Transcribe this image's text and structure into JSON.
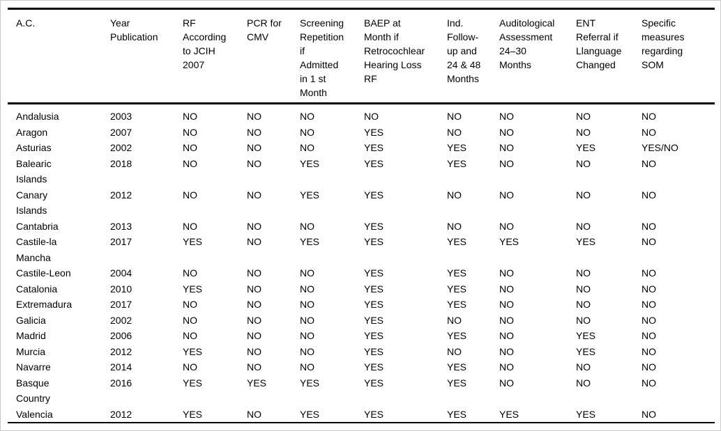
{
  "table": {
    "columns": [
      {
        "label": "A.C."
      },
      {
        "label": "Year\nPublication"
      },
      {
        "label": "RF\nAccording\nto JCIH\n2007"
      },
      {
        "label": "PCR for\nCMV"
      },
      {
        "label": "Screening\nRepetition\nif\nAdmitted\nin 1 st\nMonth"
      },
      {
        "label": "BAEP at\nMonth if\nRetrocochlear\nHearing Loss\nRF"
      },
      {
        "label": "Ind.\nFollow-\nup and\n24 & 48\nMonths"
      },
      {
        "label": "Auditological\nAssessment\n24–30\nMonths"
      },
      {
        "label": "ENT\nReferral if\nLlanguage\nChanged"
      },
      {
        "label": "Specific\nmeasures\nregarding\nSOM"
      }
    ],
    "rows": [
      [
        "Andalusia",
        "2003",
        "NO",
        "NO",
        "NO",
        "NO",
        "NO",
        "NO",
        "NO",
        "NO"
      ],
      [
        "Aragon",
        "2007",
        "NO",
        "NO",
        "NO",
        "YES",
        "NO",
        "NO",
        "NO",
        "NO"
      ],
      [
        "Asturias",
        "2002",
        "NO",
        "NO",
        "NO",
        "YES",
        "YES",
        "NO",
        "YES",
        "YES/NO"
      ],
      [
        "Balearic\nIslands",
        "2018",
        "NO",
        "NO",
        "YES",
        "YES",
        "YES",
        "NO",
        "NO",
        "NO"
      ],
      [
        "Canary\nIslands",
        "2012",
        "NO",
        "NO",
        "YES",
        "YES",
        "NO",
        "NO",
        "NO",
        "NO"
      ],
      [
        "Cantabria",
        "2013",
        "NO",
        "NO",
        "NO",
        "YES",
        "NO",
        "NO",
        "NO",
        "NO"
      ],
      [
        "Castile-la\nMancha",
        "2017",
        "YES",
        "NO",
        "YES",
        "YES",
        "YES",
        "YES",
        "YES",
        "NO"
      ],
      [
        "Castile-Leon",
        "2004",
        "NO",
        "NO",
        "NO",
        "YES",
        "YES",
        "NO",
        "NO",
        "NO"
      ],
      [
        "Catalonia",
        "2010",
        "YES",
        "NO",
        "NO",
        "YES",
        "YES",
        "NO",
        "NO",
        "NO"
      ],
      [
        "Extremadura",
        "2017",
        "NO",
        "NO",
        "NO",
        "YES",
        "YES",
        "NO",
        "NO",
        "NO"
      ],
      [
        "Galicia",
        "2002",
        "NO",
        "NO",
        "NO",
        "YES",
        "NO",
        "NO",
        "NO",
        "NO"
      ],
      [
        "Madrid",
        "2006",
        "NO",
        "NO",
        "NO",
        "YES",
        "YES",
        "NO",
        "YES",
        "NO"
      ],
      [
        "Murcia",
        "2012",
        "YES",
        "NO",
        "NO",
        "YES",
        "NO",
        "NO",
        "YES",
        "NO"
      ],
      [
        "Navarre",
        "2014",
        "NO",
        "NO",
        "NO",
        "YES",
        "YES",
        "NO",
        "NO",
        "NO"
      ],
      [
        "Basque\nCountry",
        "2016",
        "YES",
        "YES",
        "YES",
        "YES",
        "YES",
        "NO",
        "NO",
        "NO"
      ],
      [
        "Valencia",
        "2012",
        "YES",
        "NO",
        "YES",
        "YES",
        "YES",
        "YES",
        "YES",
        "NO"
      ]
    ],
    "colors": {
      "rule": "#000000",
      "outer_border": "#c8c8c8",
      "text": "#000000",
      "background": "#ffffff"
    }
  }
}
